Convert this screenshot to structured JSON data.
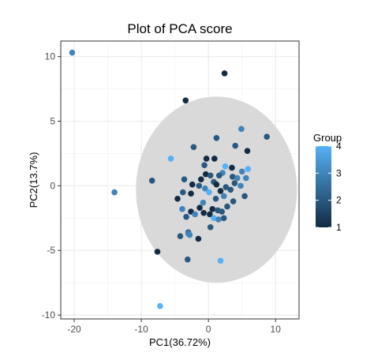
{
  "chart_data": {
    "type": "scatter",
    "title": "Plot of PCA score",
    "xlabel": "PC1(36.72%)",
    "ylabel": "PC2(13.7%)",
    "xlim": [
      -22,
      13.5
    ],
    "ylim": [
      -10.3,
      11.2
    ],
    "x_ticks": [
      -20,
      -10,
      0,
      10
    ],
    "y_ticks": [
      -10,
      -5,
      0,
      5,
      10
    ],
    "grid": true,
    "ellipse": {
      "center": [
        1.2,
        -0.3
      ],
      "semi_axis_x": 12,
      "semi_axis_y": 7.2,
      "color": "#d9d9d9"
    },
    "legend": {
      "title": "Group",
      "position": "right",
      "ticks": [
        1,
        2,
        3,
        4
      ],
      "range": [
        1,
        4
      ],
      "colors": {
        "low": "#132B43",
        "high": "#56B1F7"
      }
    },
    "points": [
      {
        "x": -20.3,
        "y": 10.3,
        "group": 3
      },
      {
        "x": 2.4,
        "y": 8.7,
        "group": 1
      },
      {
        "x": -3.4,
        "y": 6.6,
        "group": 1
      },
      {
        "x": 4.9,
        "y": 4.4,
        "group": 3
      },
      {
        "x": 8.7,
        "y": 3.8,
        "group": 2
      },
      {
        "x": 5.8,
        "y": 2.7,
        "group": 1
      },
      {
        "x": -2.2,
        "y": 3.0,
        "group": 2
      },
      {
        "x": 1.2,
        "y": 3.7,
        "group": 2
      },
      {
        "x": 4.0,
        "y": 3.1,
        "group": 2
      },
      {
        "x": -5.6,
        "y": 2.1,
        "group": 4
      },
      {
        "x": -0.3,
        "y": 2.1,
        "group": 1
      },
      {
        "x": 0.9,
        "y": 2.1,
        "group": 1
      },
      {
        "x": -0.6,
        "y": 1.6,
        "group": 2
      },
      {
        "x": 2.5,
        "y": 1.5,
        "group": 4
      },
      {
        "x": 3.5,
        "y": 1.4,
        "group": 1
      },
      {
        "x": 5.9,
        "y": 1.3,
        "group": 4
      },
      {
        "x": 5.0,
        "y": 1.1,
        "group": 3
      },
      {
        "x": 2.1,
        "y": 1.0,
        "group": 3
      },
      {
        "x": -0.4,
        "y": 0.9,
        "group": 1
      },
      {
        "x": 0.3,
        "y": 0.8,
        "group": 2
      },
      {
        "x": 1.6,
        "y": 0.8,
        "group": 2
      },
      {
        "x": 3.6,
        "y": 0.7,
        "group": 2
      },
      {
        "x": 4.3,
        "y": 0.6,
        "group": 3
      },
      {
        "x": -1.1,
        "y": 0.5,
        "group": 1
      },
      {
        "x": -8.4,
        "y": 0.4,
        "group": 2
      },
      {
        "x": -3.6,
        "y": 0.5,
        "group": 2
      },
      {
        "x": 5.6,
        "y": 0.6,
        "group": 3
      },
      {
        "x": 0.8,
        "y": 0.3,
        "group": 2
      },
      {
        "x": 3.9,
        "y": 0.2,
        "group": 2
      },
      {
        "x": -2.4,
        "y": 0.1,
        "group": 1
      },
      {
        "x": -1.4,
        "y": 0.0,
        "group": 2
      },
      {
        "x": 1.2,
        "y": 0.1,
        "group": 1
      },
      {
        "x": 4.8,
        "y": 0.0,
        "group": 3
      },
      {
        "x": -0.5,
        "y": -0.2,
        "group": 3
      },
      {
        "x": 2.6,
        "y": -0.1,
        "group": 2
      },
      {
        "x": -14.0,
        "y": -0.5,
        "group": 3
      },
      {
        "x": 1.8,
        "y": -0.4,
        "group": 1
      },
      {
        "x": 3.3,
        "y": -0.3,
        "group": 2
      },
      {
        "x": -3.8,
        "y": -0.5,
        "group": 2
      },
      {
        "x": 0.1,
        "y": -0.5,
        "group": 4
      },
      {
        "x": -2.6,
        "y": -0.6,
        "group": 1
      },
      {
        "x": 2.3,
        "y": -0.8,
        "group": 3
      },
      {
        "x": 5.4,
        "y": -0.8,
        "group": 2
      },
      {
        "x": 1.1,
        "y": -1.0,
        "group": 2
      },
      {
        "x": -4.6,
        "y": -1.0,
        "group": 1
      },
      {
        "x": 3.7,
        "y": -1.2,
        "group": 2
      },
      {
        "x": -0.8,
        "y": -1.3,
        "group": 3
      },
      {
        "x": 2.8,
        "y": -1.6,
        "group": 2
      },
      {
        "x": -3.9,
        "y": -1.8,
        "group": 3
      },
      {
        "x": -1.3,
        "y": -1.7,
        "group": 1
      },
      {
        "x": 0.6,
        "y": -1.8,
        "group": 1
      },
      {
        "x": 1.4,
        "y": -1.9,
        "group": 2
      },
      {
        "x": -2.6,
        "y": -2.0,
        "group": 1
      },
      {
        "x": -0.7,
        "y": -2.1,
        "group": 1
      },
      {
        "x": 0.2,
        "y": -2.2,
        "group": 1
      },
      {
        "x": 2.0,
        "y": -2.0,
        "group": 2
      },
      {
        "x": -2.0,
        "y": -2.2,
        "group": 3
      },
      {
        "x": -3.3,
        "y": -2.4,
        "group": 2
      },
      {
        "x": 0.8,
        "y": -2.5,
        "group": 4
      },
      {
        "x": 1.5,
        "y": -2.6,
        "group": 3
      },
      {
        "x": 2.3,
        "y": -2.5,
        "group": 2
      },
      {
        "x": -3.0,
        "y": -3.6,
        "group": 2
      },
      {
        "x": -3.0,
        "y": -3.7,
        "group": 3
      },
      {
        "x": -4.2,
        "y": -3.9,
        "group": 2
      },
      {
        "x": 0.3,
        "y": -3.2,
        "group": 2
      },
      {
        "x": -2.8,
        "y": -3.8,
        "group": 3
      },
      {
        "x": -1.5,
        "y": -4.1,
        "group": 1
      },
      {
        "x": -7.6,
        "y": -5.1,
        "group": 1
      },
      {
        "x": -3.1,
        "y": -5.7,
        "group": 2
      },
      {
        "x": 1.8,
        "y": -5.8,
        "group": 4
      },
      {
        "x": -7.2,
        "y": -9.3,
        "group": 4
      }
    ]
  }
}
